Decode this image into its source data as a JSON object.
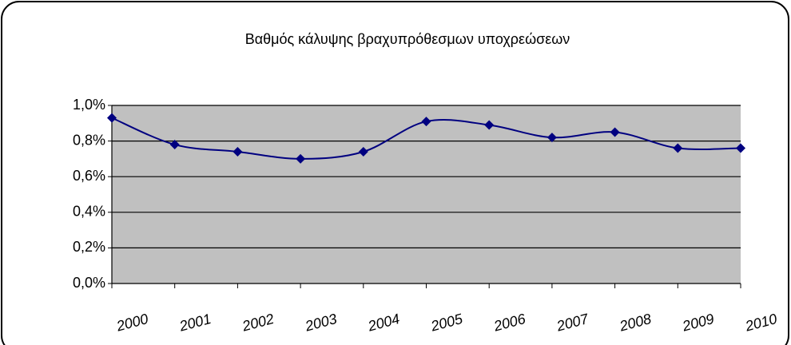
{
  "chart_data": {
    "type": "line",
    "title": "Βαθμός κάλυψης βραχυπρόθεσμων υποχρεώσεων",
    "categories": [
      "2000",
      "2001",
      "2002",
      "2003",
      "2004",
      "2005",
      "2006",
      "2007",
      "2008",
      "2009",
      "2010"
    ],
    "series": [
      {
        "color": "#000080",
        "values": [
          0.93,
          0.78,
          0.74,
          0.7,
          0.74,
          0.91,
          0.89,
          0.82,
          0.85,
          0.76,
          0.76
        ]
      }
    ],
    "ylim": [
      0,
      1.0
    ],
    "yticks": [
      {
        "value": 0,
        "label": "0,0%"
      },
      {
        "value": 0.2,
        "label": "0,2%"
      },
      {
        "value": 0.4,
        "label": "0,4%"
      },
      {
        "value": 0.6,
        "label": "0,6%"
      },
      {
        "value": 0.8,
        "label": "0,8%"
      },
      {
        "value": 1.0,
        "label": "1,0%"
      }
    ],
    "grid": true,
    "plot_background": "#c0c0c0"
  }
}
